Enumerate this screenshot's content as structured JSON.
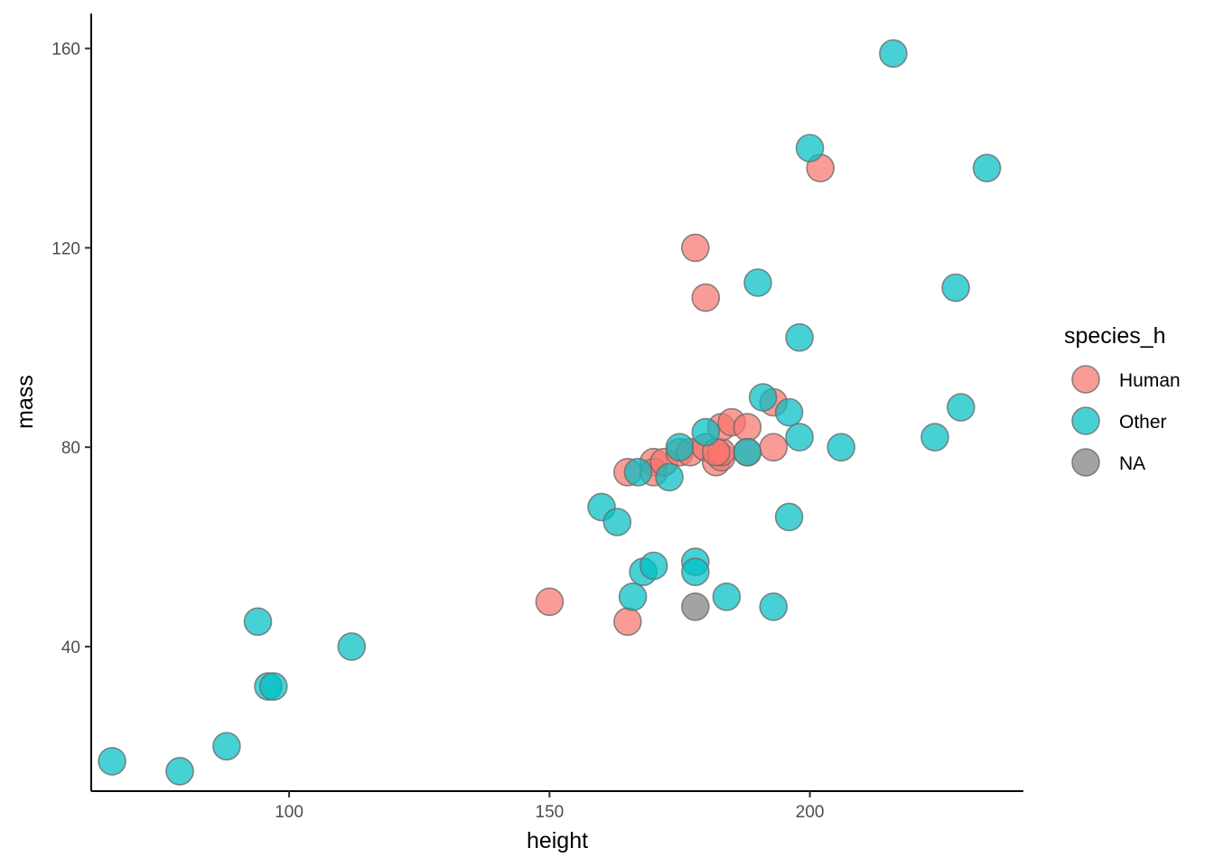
{
  "chart_data": {
    "type": "scatter",
    "title": "",
    "xlabel": "height",
    "ylabel": "mass",
    "xlim": [
      62,
      241
    ],
    "ylim": [
      11,
      167
    ],
    "x_ticks": [
      100,
      150,
      200
    ],
    "y_ticks": [
      40,
      80,
      120,
      160
    ],
    "grid": false,
    "legend": {
      "title": "species_h",
      "position": "right",
      "entries": [
        {
          "label": "Human",
          "color": "#F8766D"
        },
        {
          "label": "Other",
          "color": "#00BFC4"
        },
        {
          "label": "NA",
          "color": "#7F7F7F"
        }
      ]
    },
    "series": [
      {
        "name": "Human",
        "color": "#F8766D",
        "points": [
          {
            "x": 178,
            "y": 120
          },
          {
            "x": 180,
            "y": 110
          },
          {
            "x": 202,
            "y": 136
          },
          {
            "x": 150,
            "y": 49
          },
          {
            "x": 165,
            "y": 45
          },
          {
            "x": 165,
            "y": 75
          },
          {
            "x": 170,
            "y": 77
          },
          {
            "x": 170,
            "y": 75
          },
          {
            "x": 172,
            "y": 77
          },
          {
            "x": 175,
            "y": 79
          },
          {
            "x": 177,
            "y": 79
          },
          {
            "x": 180,
            "y": 80
          },
          {
            "x": 182,
            "y": 77
          },
          {
            "x": 183,
            "y": 78
          },
          {
            "x": 183,
            "y": 79
          },
          {
            "x": 183,
            "y": 84
          },
          {
            "x": 185,
            "y": 85
          },
          {
            "x": 188,
            "y": 84
          },
          {
            "x": 188,
            "y": 79
          },
          {
            "x": 193,
            "y": 80
          },
          {
            "x": 193,
            "y": 89
          },
          {
            "x": 182,
            "y": 79
          }
        ]
      },
      {
        "name": "Other",
        "color": "#00BFC4",
        "points": [
          {
            "x": 66,
            "y": 17
          },
          {
            "x": 79,
            "y": 15
          },
          {
            "x": 88,
            "y": 20
          },
          {
            "x": 94,
            "y": 45
          },
          {
            "x": 96,
            "y": 32
          },
          {
            "x": 97,
            "y": 32
          },
          {
            "x": 112,
            "y": 40
          },
          {
            "x": 160,
            "y": 68
          },
          {
            "x": 163,
            "y": 65
          },
          {
            "x": 166,
            "y": 50
          },
          {
            "x": 167,
            "y": 75
          },
          {
            "x": 168,
            "y": 55
          },
          {
            "x": 170,
            "y": 56.2
          },
          {
            "x": 173,
            "y": 74
          },
          {
            "x": 175,
            "y": 80
          },
          {
            "x": 178,
            "y": 57
          },
          {
            "x": 178,
            "y": 55
          },
          {
            "x": 180,
            "y": 83
          },
          {
            "x": 184,
            "y": 50
          },
          {
            "x": 188,
            "y": 79
          },
          {
            "x": 190,
            "y": 113
          },
          {
            "x": 191,
            "y": 90
          },
          {
            "x": 193,
            "y": 48
          },
          {
            "x": 196,
            "y": 87
          },
          {
            "x": 196,
            "y": 66
          },
          {
            "x": 198,
            "y": 102
          },
          {
            "x": 198,
            "y": 82
          },
          {
            "x": 200,
            "y": 140
          },
          {
            "x": 206,
            "y": 80
          },
          {
            "x": 216,
            "y": 159
          },
          {
            "x": 224,
            "y": 82
          },
          {
            "x": 228,
            "y": 112
          },
          {
            "x": 229,
            "y": 88
          },
          {
            "x": 234,
            "y": 136
          }
        ]
      },
      {
        "name": "NA",
        "color": "#7F7F7F",
        "points": [
          {
            "x": 178,
            "y": 48
          }
        ]
      }
    ]
  }
}
